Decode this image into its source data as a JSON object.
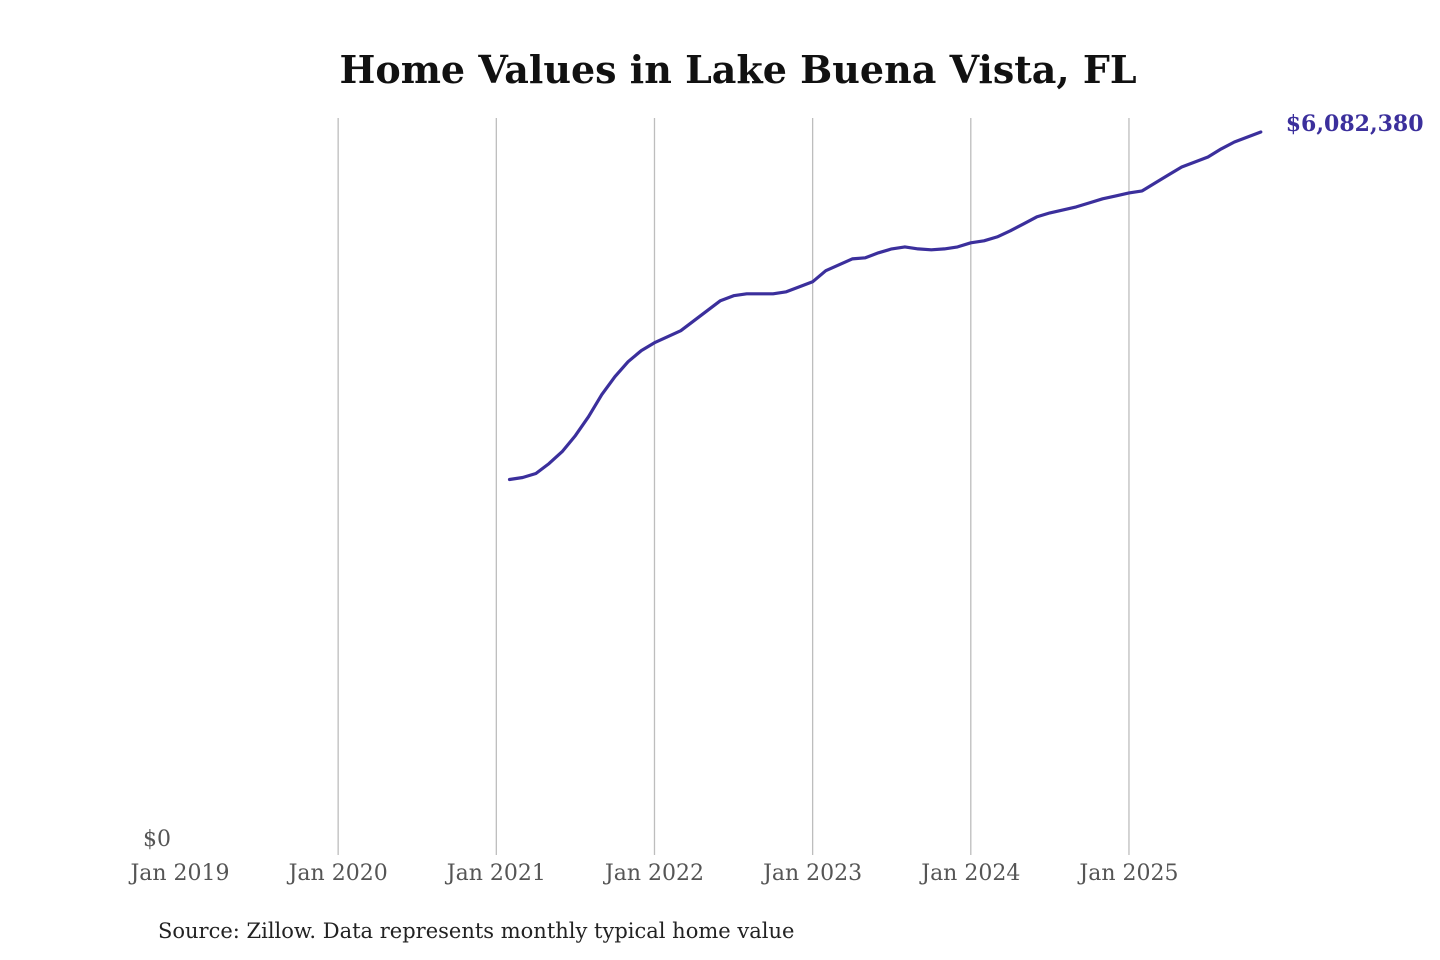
{
  "chart_data": {
    "type": "line",
    "title": "Home Values in Lake Buena Vista, FL",
    "source": "Source: Zillow. Data represents monthly typical home value",
    "xlabel": "",
    "ylabel": "",
    "x_ticks": [
      "Jan 2019",
      "Jan 2020",
      "Jan 2021",
      "Jan 2022",
      "Jan 2023",
      "Jan 2024",
      "Jan 2025"
    ],
    "y_ticks": [
      "$0"
    ],
    "ylim": [
      0,
      6200000
    ],
    "xlim": [
      "2019-01",
      "2025-11"
    ],
    "grid": "vertical",
    "line_color": "#3b2f9c",
    "end_label": "$6,082,380",
    "series": [
      {
        "x": [
          "2021-02",
          "2021-03",
          "2021-04",
          "2021-05",
          "2021-06",
          "2021-07",
          "2021-08",
          "2021-09",
          "2021-10",
          "2021-11",
          "2021-12",
          "2022-01",
          "2022-02",
          "2022-03",
          "2022-04",
          "2022-05",
          "2022-06",
          "2022-07",
          "2022-08",
          "2022-09",
          "2022-10",
          "2022-11",
          "2022-12",
          "2023-01",
          "2023-02",
          "2023-03",
          "2023-04",
          "2023-05",
          "2023-06",
          "2023-07",
          "2023-08",
          "2023-09",
          "2023-10",
          "2023-11",
          "2023-12",
          "2024-01",
          "2024-02",
          "2024-03",
          "2024-04",
          "2024-05",
          "2024-06",
          "2024-07",
          "2024-08",
          "2024-09",
          "2024-10",
          "2024-11",
          "2024-12",
          "2025-01",
          "2025-02",
          "2025-03",
          "2025-04",
          "2025-05",
          "2025-06",
          "2025-07",
          "2025-08",
          "2025-09",
          "2025-10",
          "2025-11"
        ],
        "values": [
          3159000,
          3176000,
          3209000,
          3293000,
          3394000,
          3528000,
          3688000,
          3873000,
          4024000,
          4150000,
          4243000,
          4310000,
          4360000,
          4411000,
          4495000,
          4579000,
          4663000,
          4705000,
          4721000,
          4721000,
          4721000,
          4738000,
          4780000,
          4822000,
          4915000,
          4965000,
          5015000,
          5024000,
          5066000,
          5099000,
          5116000,
          5099000,
          5091000,
          5099000,
          5116000,
          5150000,
          5167000,
          5200000,
          5251000,
          5309000,
          5368000,
          5402000,
          5427000,
          5452000,
          5486000,
          5520000,
          5545000,
          5570000,
          5587000,
          5654000,
          5721000,
          5788000,
          5830000,
          5872000,
          5940000,
          5998000,
          6040000,
          6082380
        ]
      }
    ]
  }
}
